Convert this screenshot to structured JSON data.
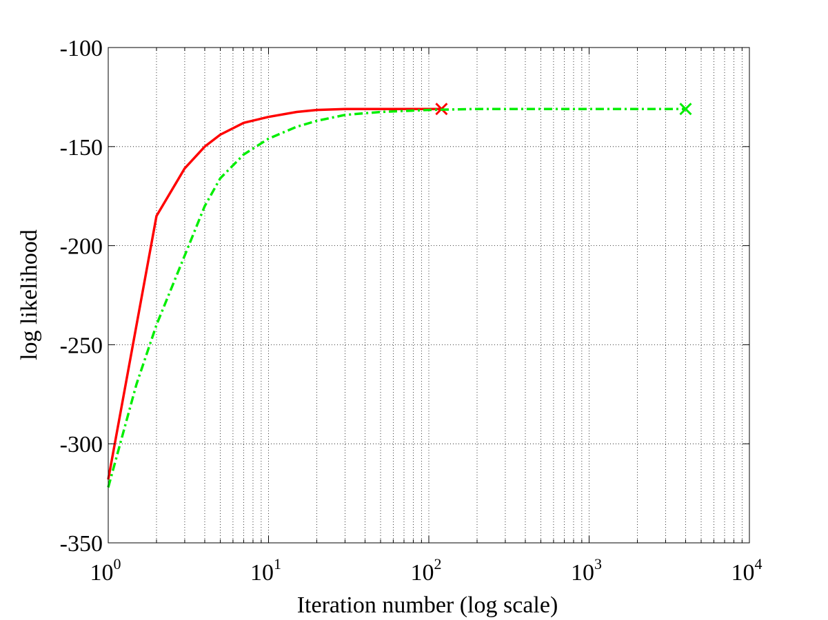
{
  "chart_data": {
    "type": "line",
    "title": "",
    "xlabel": "Iteration number (log scale)",
    "ylabel": "log likelihood",
    "x_scale": "log",
    "xlim": [
      1,
      10000
    ],
    "ylim": [
      -350,
      -100
    ],
    "grid": true,
    "x_ticks": [
      {
        "base": "10",
        "exp": "0",
        "value": 1
      },
      {
        "base": "10",
        "exp": "1",
        "value": 10
      },
      {
        "base": "10",
        "exp": "2",
        "value": 100
      },
      {
        "base": "10",
        "exp": "3",
        "value": 1000
      },
      {
        "base": "10",
        "exp": "4",
        "value": 10000
      }
    ],
    "y_ticks": [
      "-100",
      "-150",
      "-200",
      "-250",
      "-300",
      "-350"
    ],
    "y_tick_values": [
      -100,
      -150,
      -200,
      -250,
      -300,
      -350
    ],
    "series": [
      {
        "color": "#ff0000",
        "style": "solid",
        "marker_at_end": "x",
        "x": [
          1,
          2,
          3,
          4,
          5,
          7,
          10,
          15,
          20,
          30,
          50,
          80,
          120
        ],
        "y": [
          -318,
          -185,
          -161,
          -150,
          -144,
          -138,
          -135,
          -132.5,
          -131.5,
          -131,
          -131,
          -131,
          -131
        ]
      },
      {
        "color": "#00ee00",
        "style": "dashdot",
        "marker_at_end": "x",
        "x": [
          1,
          1.5,
          2,
          3,
          4,
          5,
          7,
          10,
          15,
          20,
          30,
          50,
          100,
          200,
          500,
          1000,
          2000,
          4000
        ],
        "y": [
          -322,
          -270,
          -240,
          -205,
          -180,
          -166,
          -154,
          -146,
          -140,
          -137,
          -134,
          -132.5,
          -131.5,
          -131,
          -131,
          -131,
          -131,
          -131
        ]
      }
    ]
  }
}
